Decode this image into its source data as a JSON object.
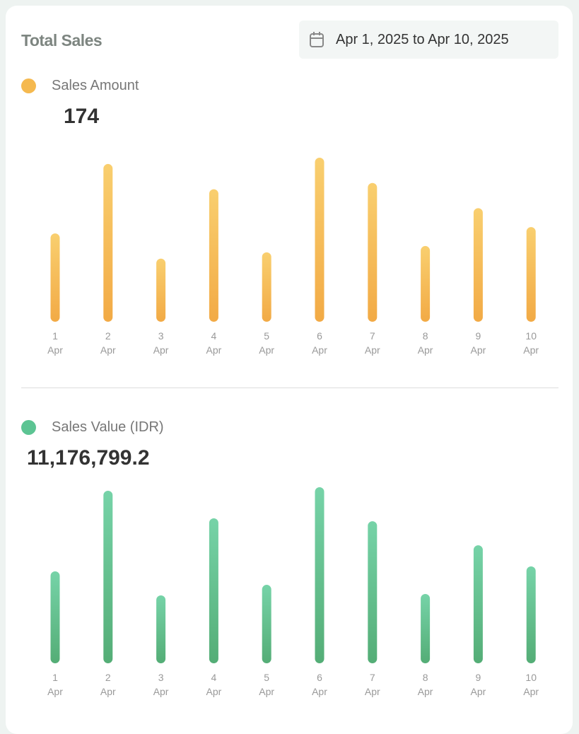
{
  "card": {
    "title": "Total Sales",
    "date_range": "Apr 1, 2025 to Apr 10, 2025",
    "date_icon": "calendar-icon"
  },
  "chart_data": [
    {
      "type": "bar",
      "title": "Sales Amount",
      "total": "174",
      "color_top": "#f9cf6f",
      "color_bottom": "#f2aa45",
      "categories": [
        [
          "1",
          "Apr"
        ],
        [
          "2",
          "Apr"
        ],
        [
          "3",
          "Apr"
        ],
        [
          "4",
          "Apr"
        ],
        [
          "5",
          "Apr"
        ],
        [
          "6",
          "Apr"
        ],
        [
          "7",
          "Apr"
        ],
        [
          "8",
          "Apr"
        ],
        [
          "9",
          "Apr"
        ],
        [
          "10",
          "Apr"
        ]
      ],
      "values": [
        14,
        25,
        10,
        21,
        11,
        26,
        22,
        12,
        18,
        15
      ],
      "ylim": [
        0,
        26
      ]
    },
    {
      "type": "bar",
      "title": "Sales Value (IDR)",
      "total": "11,176,799.2",
      "color_top": "#76d3a8",
      "color_bottom": "#54ad76",
      "categories": [
        [
          "1",
          "Apr"
        ],
        [
          "2",
          "Apr"
        ],
        [
          "3",
          "Apr"
        ],
        [
          "4",
          "Apr"
        ],
        [
          "5",
          "Apr"
        ],
        [
          "6",
          "Apr"
        ],
        [
          "7",
          "Apr"
        ],
        [
          "8",
          "Apr"
        ],
        [
          "9",
          "Apr"
        ],
        [
          "10",
          "Apr"
        ]
      ],
      "values": [
        887000,
        1665000,
        655000,
        1399000,
        757000,
        1699000,
        1371000,
        669000,
        1139000,
        935000
      ],
      "ylim": [
        0,
        1699000
      ]
    }
  ]
}
